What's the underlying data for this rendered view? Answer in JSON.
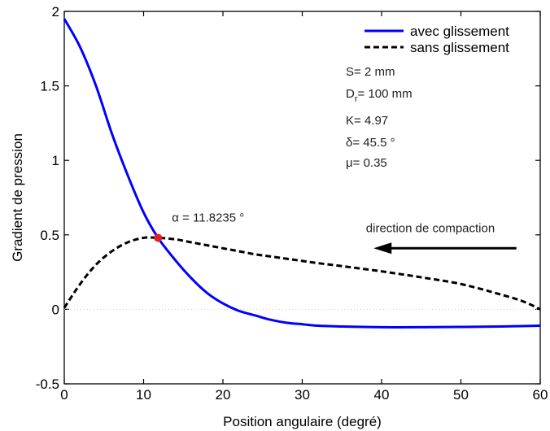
{
  "chart_data": {
    "type": "line",
    "xlabel": "Position angulaire (degré)",
    "ylabel": "Gradient de pression",
    "xlim": [
      0,
      60
    ],
    "ylim": [
      -0.5,
      2
    ],
    "xticks": [
      0,
      10,
      20,
      30,
      40,
      50,
      60
    ],
    "yticks": [
      -0.5,
      0,
      0.5,
      1,
      1.5,
      2
    ],
    "xtick_labels": [
      "0",
      "10",
      "20",
      "30",
      "40",
      "50",
      "60"
    ],
    "ytick_labels": [
      "-0.5",
      "0",
      "0.5",
      "1",
      "1.5",
      "2"
    ],
    "grid": false,
    "legend_position": "top-right",
    "series": [
      {
        "name": "avec glissement",
        "color": "#0000ff",
        "style": "solid",
        "x": [
          0,
          2,
          4,
          6,
          8,
          10,
          11.82,
          14,
          16,
          18,
          20,
          22,
          24,
          26,
          28,
          30,
          32,
          35,
          40,
          45,
          50,
          55,
          60
        ],
        "y": [
          1.95,
          1.76,
          1.5,
          1.18,
          0.9,
          0.65,
          0.48,
          0.33,
          0.21,
          0.11,
          0.04,
          -0.01,
          -0.04,
          -0.07,
          -0.09,
          -0.1,
          -0.11,
          -0.115,
          -0.12,
          -0.12,
          -0.118,
          -0.115,
          -0.11
        ]
      },
      {
        "name": "sans glissement",
        "color": "#000000",
        "style": "dashed",
        "x": [
          0,
          2,
          4,
          6,
          8,
          10,
          11.82,
          14,
          16,
          18,
          20,
          22,
          24,
          26,
          28,
          30,
          32,
          35,
          40,
          45,
          50,
          55,
          58,
          60
        ],
        "y": [
          0.01,
          0.17,
          0.3,
          0.39,
          0.45,
          0.48,
          0.48,
          0.47,
          0.45,
          0.43,
          0.41,
          0.39,
          0.37,
          0.355,
          0.34,
          0.325,
          0.31,
          0.29,
          0.255,
          0.215,
          0.17,
          0.1,
          0.05,
          0.0
        ]
      }
    ],
    "reference_line": {
      "y": 0,
      "color": "#cccccc",
      "style": "dotted"
    },
    "intersection": {
      "x": 11.82,
      "y": 0.48,
      "color": "#e02020",
      "label": "α = 11.8235 °"
    },
    "arrow": {
      "label": "direction de compaction",
      "from_x": 57,
      "to_x": 39,
      "y": 0.41
    },
    "parameters": [
      {
        "label": "S",
        "value": "= 2 mm"
      },
      {
        "label": "D",
        "sub": "r",
        "value": "= 100 mm"
      },
      {
        "label": "K",
        "value": "= 4.97"
      },
      {
        "label": "δ",
        "value": "= 45.5 °"
      },
      {
        "label": "μ",
        "value": "= 0.35"
      }
    ]
  }
}
